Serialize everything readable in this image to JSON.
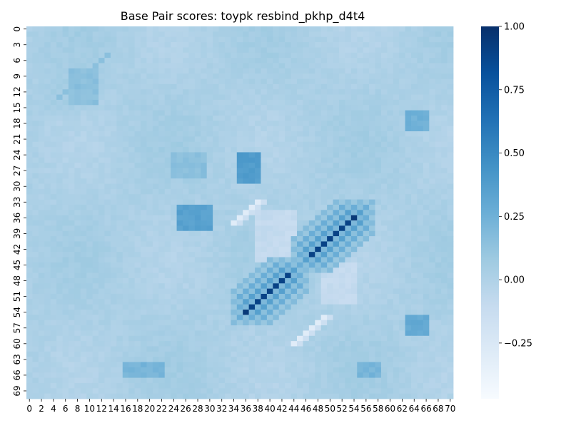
{
  "chart_data": {
    "type": "heatmap",
    "title": "Base Pair scores: toypk resbind_pkhp_d4t4",
    "xlabel": "",
    "ylabel": "",
    "rows": 71,
    "cols": 71,
    "x_tick_labels": [
      "0",
      "2",
      "4",
      "6",
      "8",
      "10",
      "12",
      "14",
      "16",
      "18",
      "20",
      "22",
      "24",
      "26",
      "28",
      "30",
      "32",
      "34",
      "36",
      "38",
      "40",
      "42",
      "44",
      "46",
      "48",
      "50",
      "52",
      "54",
      "56",
      "58",
      "60",
      "62",
      "64",
      "66",
      "68",
      "70"
    ],
    "y_tick_labels": [
      "0",
      "3",
      "6",
      "9",
      "12",
      "15",
      "18",
      "21",
      "24",
      "27",
      "30",
      "33",
      "36",
      "39",
      "42",
      "45",
      "48",
      "51",
      "54",
      "57",
      "60",
      "63",
      "66",
      "69"
    ],
    "colormap": "Blues",
    "colorbar": {
      "vmin": -0.47,
      "vmax": 1.0,
      "ticks": [
        1.0,
        0.75,
        0.5,
        0.25,
        0.0,
        -0.25
      ],
      "tick_labels": [
        "1.00",
        "0.75",
        "0.50",
        "0.25",
        "0.00",
        "−0.25"
      ]
    },
    "baseline": 0.02,
    "features": [
      {
        "kind": "helix",
        "i_start": 36,
        "j_end": 54,
        "length": 8,
        "peak": 0.95,
        "side": 0.45
      },
      {
        "kind": "helix",
        "i_start": 47,
        "j_end": 43,
        "length": 7,
        "peak": 0.9,
        "side": 0.45
      },
      {
        "kind": "helix",
        "i_start": 8,
        "j_end": 10,
        "length": 6,
        "peak": 0.15,
        "side": 0.08
      },
      {
        "kind": "block",
        "r0": 34,
        "r1": 38,
        "c0": 25,
        "c1": 30,
        "value": 0.35
      },
      {
        "kind": "block",
        "r0": 24,
        "r1": 29,
        "c0": 35,
        "c1": 38,
        "value": 0.38
      },
      {
        "kind": "block",
        "r0": 24,
        "r1": 28,
        "c0": 24,
        "c1": 29,
        "value": 0.15
      },
      {
        "kind": "block",
        "r0": 55,
        "r1": 58,
        "c0": 63,
        "c1": 66,
        "value": 0.3
      },
      {
        "kind": "block",
        "r0": 16,
        "r1": 19,
        "c0": 63,
        "c1": 66,
        "value": 0.25
      },
      {
        "kind": "block",
        "r0": 64,
        "r1": 66,
        "c0": 16,
        "c1": 22,
        "value": 0.22
      },
      {
        "kind": "block",
        "r0": 64,
        "r1": 66,
        "c0": 55,
        "c1": 58,
        "value": 0.22
      },
      {
        "kind": "block",
        "r0": 8,
        "r1": 14,
        "c0": 7,
        "c1": 11,
        "value": 0.15
      },
      {
        "kind": "block",
        "r0": 35,
        "r1": 44,
        "c0": 38,
        "c1": 44,
        "value": -0.1
      },
      {
        "kind": "block",
        "r0": 45,
        "r1": 52,
        "c0": 49,
        "c1": 54,
        "value": -0.1
      },
      {
        "kind": "antidiag",
        "center": 92,
        "r0": 44,
        "r1": 48,
        "value": -0.3
      },
      {
        "kind": "antidiag",
        "center": 71,
        "r0": 33,
        "r1": 37,
        "value": -0.3
      },
      {
        "kind": "antidiag",
        "center": 104,
        "r0": 55,
        "r1": 60,
        "value": -0.3
      }
    ]
  }
}
